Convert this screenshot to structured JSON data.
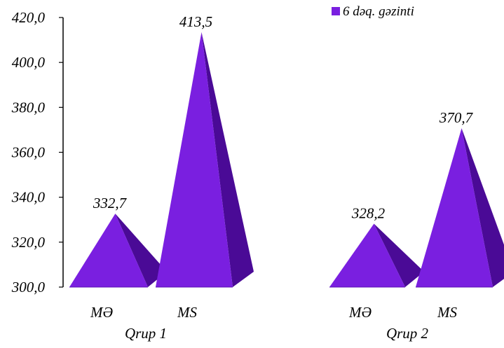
{
  "chart_data": {
    "type": "pyramid-bar",
    "legend": {
      "label": "6 dəq. gəzinti",
      "position": "top-right"
    },
    "series": [
      {
        "name": "6 dəq. gəzinti",
        "color": "#7A1FE0"
      }
    ],
    "groups": [
      {
        "label": "Qrup 1",
        "items": [
          {
            "category": "MƏ",
            "value": 332.7,
            "value_label": "332,7"
          },
          {
            "category": "MS",
            "value": 413.5,
            "value_label": "413,5"
          }
        ]
      },
      {
        "label": "Qrup 2",
        "items": [
          {
            "category": "MƏ",
            "value": 328.2,
            "value_label": "328,2"
          },
          {
            "category": "MS",
            "value": 370.7,
            "value_label": "370,7"
          }
        ]
      }
    ],
    "y_axis": {
      "min": 300,
      "max": 420,
      "ticks": [
        300,
        320,
        340,
        360,
        380,
        400,
        420
      ],
      "tick_labels": [
        "300,0",
        "320,0",
        "340,0",
        "360,0",
        "380,0",
        "400,0",
        "420,0"
      ]
    },
    "grid": false,
    "colors": {
      "front_face": "#7A1FE0",
      "side_face": "#4A0A96",
      "base_edge": "#5A10B5",
      "axis": "#000000"
    }
  }
}
